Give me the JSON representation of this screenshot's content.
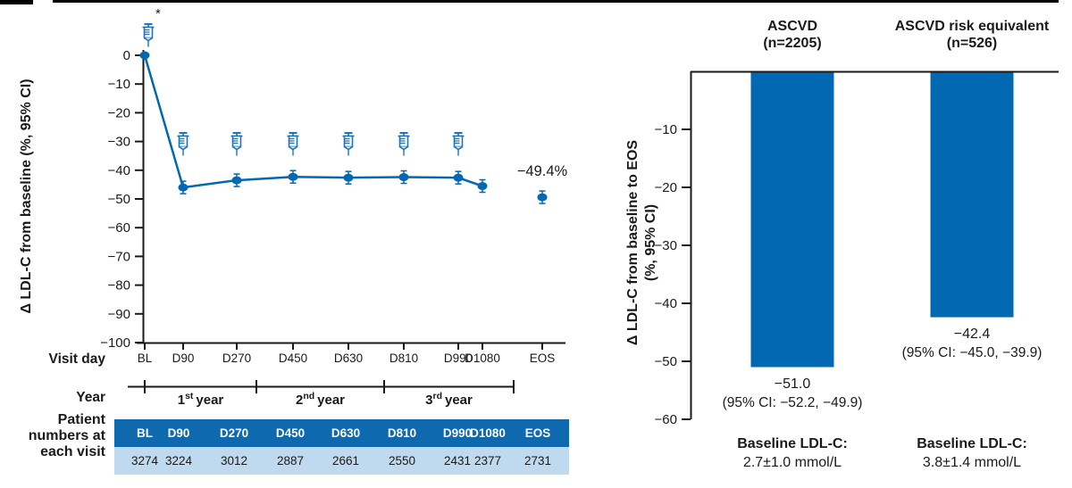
{
  "colors": {
    "primary_blue": "#0268b2",
    "syringe_blue": "#1e73b9",
    "table_header_bg": "#0f69af",
    "table_row_bg": "#bfd9ee",
    "table_header_text": "#ffffff",
    "axis_black": "#1a1a1a"
  },
  "chart_data": [
    {
      "type": "line",
      "ylabel": "Δ LDL-C from baseline (%, 95% CI)",
      "x_axis_row_label": "Visit day",
      "ylim": [
        -100,
        0
      ],
      "yticks": [
        0,
        -10,
        -20,
        -30,
        -40,
        -50,
        -60,
        -70,
        -80,
        -90,
        -100
      ],
      "points": [
        {
          "label": "BL",
          "day": 0,
          "value": 0,
          "syringe": true,
          "syringe_position": "above-axis",
          "asterisk": true
        },
        {
          "label": "D90",
          "day": 90,
          "value": -46.0,
          "syringe": true
        },
        {
          "label": "D270",
          "day": 270,
          "value": -43.5,
          "syringe": true
        },
        {
          "label": "D450",
          "day": 450,
          "value": -42.3,
          "syringe": true
        },
        {
          "label": "D630",
          "day": 630,
          "value": -42.6,
          "syringe": true
        },
        {
          "label": "D810",
          "day": 810,
          "value": -42.4,
          "syringe": true
        },
        {
          "label": "D990",
          "day": 990,
          "value": -42.6,
          "syringe": true
        },
        {
          "label": "D1080",
          "day": 1080,
          "value": -45.5
        },
        {
          "label": "EOS",
          "value": -49.4,
          "detached": true
        }
      ],
      "annotation": {
        "text": "−49.4%",
        "at": "EOS"
      },
      "year_axis": {
        "row_label": "Year",
        "segments": [
          {
            "ordinal": "1",
            "suffix": "st",
            "word": "year"
          },
          {
            "ordinal": "2",
            "suffix": "nd",
            "word": "year"
          },
          {
            "ordinal": "3",
            "suffix": "rd",
            "word": "year"
          }
        ]
      },
      "patient_table": {
        "row_label_lines": [
          "Patient",
          "numbers at",
          "each visit"
        ],
        "header": [
          "BL",
          "D90",
          "D270",
          "D450",
          "D630",
          "D810",
          "D990",
          "D1080",
          "EOS"
        ],
        "values": [
          "3274",
          "3224",
          "3012",
          "2887",
          "2661",
          "2550",
          "2431",
          "2377",
          "2731"
        ]
      }
    },
    {
      "type": "bar",
      "ylabel_lines": [
        "Δ LDL-C from baseline to EOS",
        "(%, 95% CI)"
      ],
      "ylim": [
        -60,
        0
      ],
      "yticks": [
        -10,
        -20,
        -30,
        -40,
        -50,
        -60
      ],
      "groups": [
        {
          "title_lines": [
            "ASCVD",
            "(n=2205)"
          ],
          "value": -51.0,
          "value_label": "−51.0",
          "ci_label": "(95% CI: −52.2, −49.9)",
          "baseline_label_lines": [
            "Baseline LDL-C:",
            "2.7±1.0 mmol/L"
          ]
        },
        {
          "title_lines": [
            "ASCVD risk equivalent",
            "(n=526)"
          ],
          "value": -42.4,
          "value_label": "−42.4",
          "ci_label": "(95% CI: −45.0, −39.9)",
          "baseline_label_lines": [
            "Baseline LDL-C:",
            "3.8±1.4 mmol/L"
          ]
        }
      ]
    }
  ]
}
